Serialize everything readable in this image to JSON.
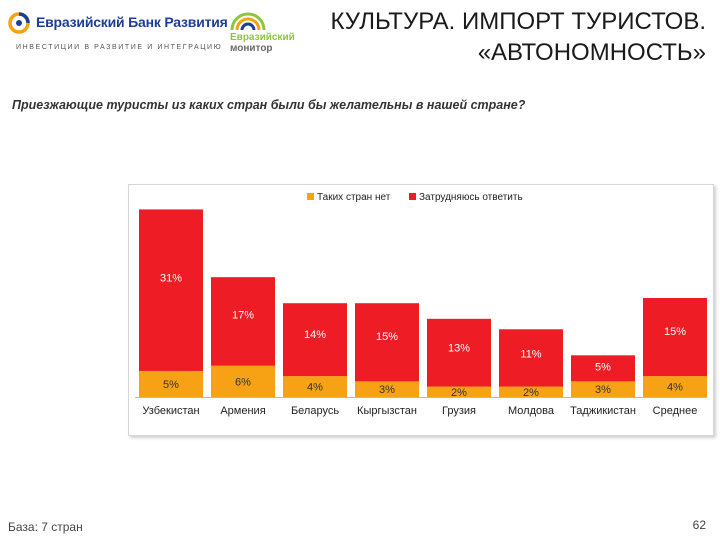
{
  "header": {
    "bank_name": "Евразийский Банк Развития",
    "bank_tagline": "ИНВЕСТИЦИИ В РАЗВИТИЕ И ИНТЕГРАЦИЮ",
    "monitor_line1": "Евразийский",
    "monitor_line2": "монитор",
    "title_line1": "КУЛЬТУРА. ИМПОРТ ТУРИСТОВ.",
    "title_line2": "«АВТОНОМНОСТЬ»"
  },
  "question": "Приезжающие туристы из каких стран были бы желательны в нашей стране?",
  "footer": {
    "base": "База: 7 стран",
    "page_number": "62"
  },
  "colors": {
    "orange": "#f7a114",
    "red": "#ee1c24",
    "label_dark": "#333333",
    "label_light": "#ffffff"
  },
  "chart_data": {
    "type": "bar",
    "stacked": true,
    "legend_position": "top",
    "categories": [
      "Узбекистан",
      "Армения",
      "Беларусь",
      "Кыргызстан",
      "Грузия",
      "Молдова",
      "Таджикистан",
      "Среднее"
    ],
    "series": [
      {
        "name": "Таких стран нет",
        "color": "#f7a114",
        "values": [
          5,
          6,
          4,
          3,
          2,
          2,
          3,
          4
        ],
        "labels": [
          "5%",
          "6%",
          "4%",
          "3%",
          "2%",
          "2%",
          "3%",
          "4%"
        ]
      },
      {
        "name": "Затрудняюсь ответить",
        "color": "#ee1c24",
        "values": [
          31,
          17,
          14,
          15,
          13,
          11,
          5,
          15
        ],
        "labels": [
          "31%",
          "17%",
          "14%",
          "15%",
          "13%",
          "11%",
          "5%",
          "15%"
        ]
      }
    ],
    "ylim": [
      0,
      38
    ],
    "grid": false
  }
}
